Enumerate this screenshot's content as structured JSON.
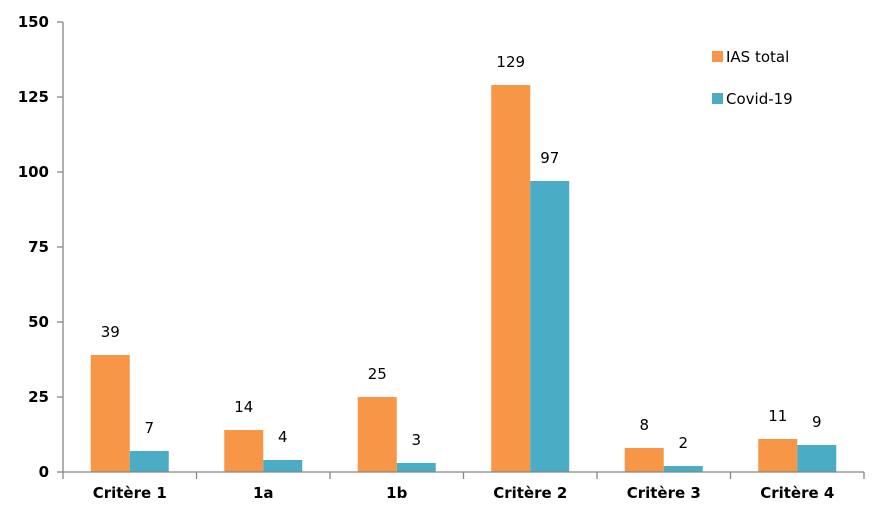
{
  "chart_data": {
    "type": "bar",
    "title": "",
    "xlabel": "",
    "ylabel": "",
    "categories": [
      "Critère 1",
      "1a",
      "1b",
      "Critère 2",
      "Critère 3",
      "Critère 4"
    ],
    "series": [
      {
        "name": "IAS total",
        "color": "#F79646",
        "values": [
          39,
          14,
          25,
          129,
          8,
          11
        ]
      },
      {
        "name": "Covid-19",
        "color": "#4BACC6",
        "values": [
          7,
          4,
          3,
          97,
          2,
          9
        ]
      }
    ],
    "ylim": [
      0,
      150
    ],
    "yticks": [
      0,
      25,
      50,
      75,
      100,
      125,
      150
    ],
    "grid": false,
    "legend": "top-right",
    "data_labels": true
  }
}
